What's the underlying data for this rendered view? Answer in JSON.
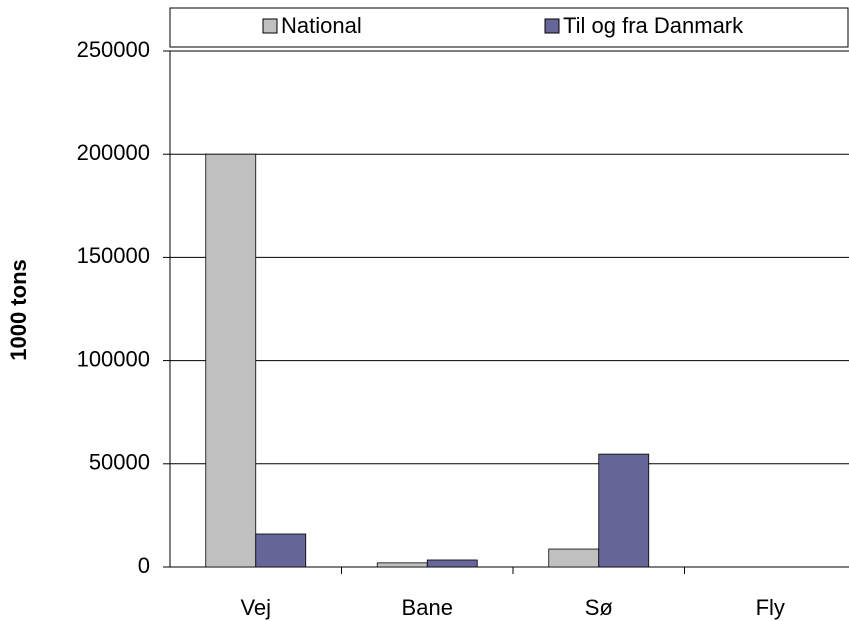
{
  "chart_data": {
    "type": "bar",
    "y_label": "1000 tons",
    "categories": [
      "Vej",
      "Bane",
      "Sø",
      "Fly"
    ],
    "series": [
      {
        "name": "National",
        "color": "#c0c0c0",
        "values": [
          200000,
          2000,
          8700,
          0
        ]
      },
      {
        "name": "Til og fra Danmark",
        "color": "#666699",
        "values": [
          16000,
          3400,
          54700,
          0
        ]
      }
    ],
    "ylim": [
      0,
      250000
    ],
    "yticks": [
      0,
      50000,
      100000,
      150000,
      200000,
      250000
    ],
    "grid": true,
    "legend": "top"
  }
}
